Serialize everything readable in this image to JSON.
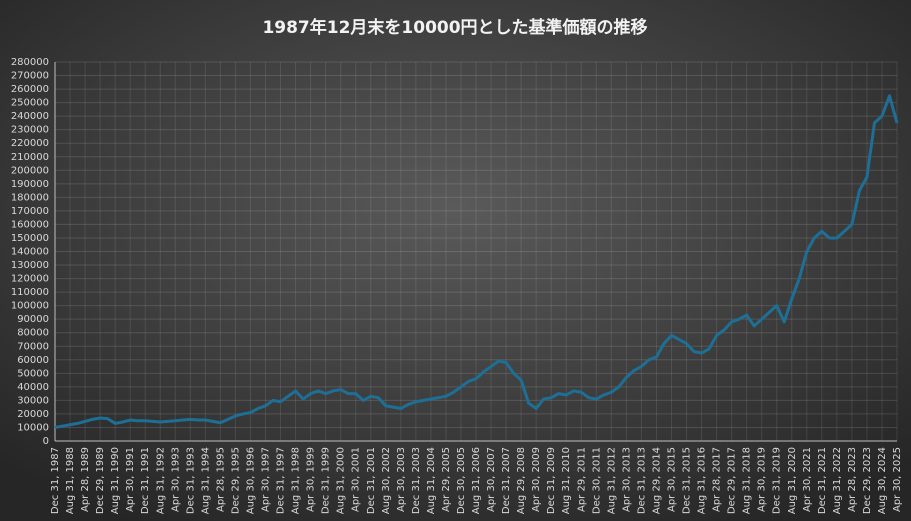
{
  "chart_data": {
    "type": "line",
    "title": "1987年12月末を10000円とした基準価額の推移",
    "categories": [
      "Dec 31, 1987",
      null,
      "Aug 31, 1988",
      null,
      "Apr 28, 1989",
      null,
      "Dec 29, 1989",
      null,
      "Aug 31, 1990",
      null,
      "Apr 30, 1991",
      null,
      "Dec 31, 1991",
      null,
      "Aug 31, 1992",
      null,
      "Apr 30, 1993",
      null,
      "Dec 31, 1993",
      null,
      "Aug 31, 1994",
      null,
      "Apr 28, 1995",
      null,
      "Dec 29, 1995",
      null,
      "Aug 30, 1996",
      null,
      "Apr 30, 1997",
      null,
      "Dec 31, 1997",
      null,
      "Aug 31, 1998",
      null,
      "Apr 30, 1999",
      null,
      "Dec 31, 1999",
      null,
      "Aug 31, 2000",
      null,
      "Apr 30, 2001",
      null,
      "Dec 31, 2001",
      null,
      "Aug 30, 2002",
      null,
      "Apr 30, 2003",
      null,
      "Dec 31, 2003",
      null,
      "Aug 31, 2004",
      null,
      "Apr 29, 2005",
      null,
      "Dec 30, 2005",
      null,
      "Aug 31, 2006",
      null,
      "Apr 30, 2007",
      null,
      "Dec 31, 2007",
      null,
      "Aug 29, 2008",
      null,
      "Apr 30, 2009",
      null,
      "Dec 31, 2009",
      null,
      "Aug 31, 2010",
      null,
      "Apr 29, 2011",
      null,
      "Dec 30, 2011",
      null,
      "Aug 31, 2012",
      null,
      "Apr 30, 2013",
      null,
      "Dec 31, 2013",
      null,
      "Aug 29, 2014",
      null,
      "Apr 30, 2015",
      null,
      "Dec 31, 2015",
      null,
      "Aug 31, 2016",
      null,
      "Apr 28, 2017",
      null,
      "Dec 29, 2017",
      null,
      "Aug 31, 2018",
      null,
      "Apr 30, 2019",
      null,
      "Dec 31, 2019",
      null,
      "Aug 31, 2020",
      null,
      "Apr 30, 2021",
      null,
      "Dec 31, 2021",
      null,
      "Aug 31, 2022",
      null,
      "Apr 28, 2023",
      null,
      "Dec 29, 2023",
      null,
      "Aug 30, 2024",
      null,
      "Apr 30, 2025"
    ],
    "series": [
      {
        "color": "#1e6f96",
        "values": [
          10000,
          11000,
          12000,
          13000,
          14500,
          16000,
          17000,
          16500,
          13000,
          14000,
          15500,
          15000,
          15000,
          14500,
          14000,
          14500,
          15000,
          15500,
          16000,
          15500,
          15500,
          14500,
          13500,
          16000,
          18500,
          20000,
          21000,
          24000,
          26000,
          30000,
          29000,
          33000,
          37000,
          31000,
          35000,
          37000,
          35000,
          37000,
          38000,
          35000,
          35000,
          30000,
          33000,
          32000,
          26000,
          25000,
          24000,
          27000,
          29000,
          30000,
          31000,
          32000,
          33000,
          36000,
          40000,
          44000,
          46000,
          51000,
          55000,
          59000,
          58000,
          50000,
          45000,
          28000,
          24000,
          31000,
          32000,
          35000,
          34000,
          37000,
          36000,
          32000,
          31000,
          34000,
          36000,
          40000,
          47000,
          52000,
          55000,
          60000,
          62000,
          72000,
          78000,
          75000,
          72000,
          66000,
          65000,
          68000,
          78000,
          82000,
          88000,
          90000,
          93000,
          85000,
          90000,
          95000,
          100000,
          88000,
          105000,
          120000,
          140000,
          150000,
          155000,
          150000,
          150000,
          155000,
          160000,
          185000,
          195000,
          235000,
          240000,
          255000,
          235000
        ]
      }
    ],
    "ylim": [
      0,
      280000
    ],
    "yticks": [
      0,
      10000,
      20000,
      30000,
      40000,
      50000,
      60000,
      70000,
      80000,
      90000,
      100000,
      110000,
      120000,
      130000,
      140000,
      150000,
      160000,
      170000,
      180000,
      190000,
      200000,
      210000,
      220000,
      230000,
      240000,
      250000,
      260000,
      270000,
      280000
    ],
    "grid": true
  }
}
